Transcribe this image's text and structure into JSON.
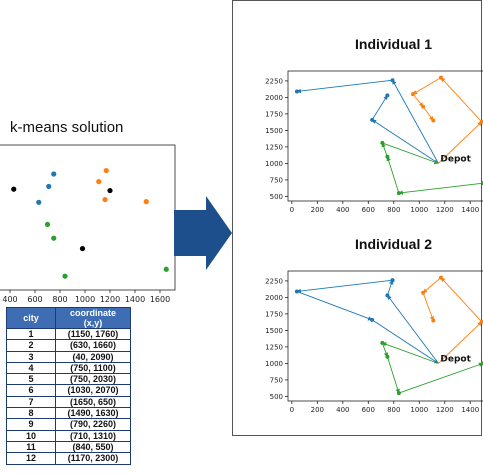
{
  "left": {
    "title": "k-means solution",
    "xticks": [
      400,
      600,
      800,
      1000,
      1200,
      1400,
      1600
    ],
    "xlim": [
      320,
      1720
    ],
    "ylim": [
      350,
      2450
    ],
    "points": [
      {
        "x": 750,
        "y": 2030,
        "c": "#1f77b4"
      },
      {
        "x": 710,
        "y": 1850,
        "c": "#1f77b4"
      },
      {
        "x": 630,
        "y": 1620,
        "c": "#1f77b4"
      },
      {
        "x": 1170,
        "y": 2080,
        "c": "#ff7f0e"
      },
      {
        "x": 1110,
        "y": 1920,
        "c": "#ff7f0e"
      },
      {
        "x": 1160,
        "y": 1660,
        "c": "#ff7f0e"
      },
      {
        "x": 1490,
        "y": 1630,
        "c": "#ff7f0e"
      },
      {
        "x": 700,
        "y": 1300,
        "c": "#2ca02c"
      },
      {
        "x": 750,
        "y": 1100,
        "c": "#2ca02c"
      },
      {
        "x": 840,
        "y": 550,
        "c": "#2ca02c"
      },
      {
        "x": 1650,
        "y": 650,
        "c": "#2ca02c"
      },
      {
        "x": 430,
        "y": 1810,
        "c": "#000000"
      },
      {
        "x": 1200,
        "y": 1790,
        "c": "#000000"
      },
      {
        "x": 980,
        "y": 950,
        "c": "#000000"
      }
    ]
  },
  "table": {
    "headers": [
      "city",
      "coordinate\n(x,y)"
    ],
    "rows": [
      [
        "1",
        "(1150, 1760)"
      ],
      [
        "2",
        "(630, 1660)"
      ],
      [
        "3",
        "(40, 2090)"
      ],
      [
        "4",
        "(750, 1100)"
      ],
      [
        "5",
        "(750, 2030)"
      ],
      [
        "6",
        "(1030, 2070)"
      ],
      [
        "7",
        "(1650, 650)"
      ],
      [
        "8",
        "(1490, 1630)"
      ],
      [
        "9",
        "(790, 2260)"
      ],
      [
        "10",
        "(710, 1310)"
      ],
      [
        "11",
        "(840, 550)"
      ],
      [
        "12",
        "(1170, 2300)"
      ]
    ]
  },
  "individual1": {
    "title": "Individual 1",
    "depot_label": "Depot",
    "xticks": [
      0,
      200,
      400,
      600,
      800,
      1000,
      1200,
      1400
    ],
    "yticks": [
      500,
      750,
      1000,
      1250,
      1500,
      1750,
      2000,
      2250
    ],
    "xlim": [
      -30,
      1500
    ],
    "ylim": [
      430,
      2400
    ],
    "depot": [
      1150,
      1000
    ],
    "routes": [
      {
        "color": "#1f77b4",
        "points": [
          [
            1150,
            1000
          ],
          [
            790,
            2260
          ],
          [
            40,
            2090
          ]
        ]
      },
      {
        "color": "#1f77b4",
        "points": [
          [
            1150,
            1000
          ],
          [
            630,
            1660
          ],
          [
            750,
            2030
          ]
        ]
      },
      {
        "color": "#ff7f0e",
        "points": [
          [
            1150,
            1000
          ],
          [
            1490,
            1630
          ],
          [
            1170,
            2300
          ],
          [
            950,
            2050
          ],
          [
            1030,
            1860
          ],
          [
            1110,
            1650
          ]
        ]
      },
      {
        "color": "#2ca02c",
        "points": [
          [
            1500,
            700
          ],
          [
            840,
            550
          ],
          [
            750,
            1100
          ],
          [
            710,
            1310
          ],
          [
            1150,
            1000
          ]
        ]
      }
    ]
  },
  "individual2": {
    "title": "Individual 2",
    "depot_label": "Depot",
    "xticks": [
      0,
      200,
      400,
      600,
      800,
      1000,
      1200,
      1400
    ],
    "yticks": [
      500,
      750,
      1000,
      1250,
      1500,
      1750,
      2000,
      2250
    ],
    "xlim": [
      -30,
      1500
    ],
    "ylim": [
      430,
      2400
    ],
    "depot": [
      1150,
      1000
    ],
    "routes": [
      {
        "color": "#1f77b4",
        "points": [
          [
            790,
            2260
          ],
          [
            40,
            2090
          ],
          [
            630,
            1660
          ],
          [
            1150,
            1000
          ]
        ]
      },
      {
        "color": "#1f77b4",
        "points": [
          [
            1150,
            1000
          ],
          [
            750,
            2030
          ],
          [
            790,
            2260
          ]
        ]
      },
      {
        "color": "#ff7f0e",
        "points": [
          [
            1150,
            1000
          ],
          [
            1490,
            1630
          ],
          [
            1170,
            2300
          ],
          [
            1030,
            2070
          ],
          [
            1110,
            1650
          ]
        ]
      },
      {
        "color": "#2ca02c",
        "points": [
          [
            1150,
            1000
          ],
          [
            710,
            1310
          ],
          [
            750,
            1100
          ],
          [
            840,
            550
          ],
          [
            1500,
            1000
          ]
        ]
      }
    ]
  }
}
